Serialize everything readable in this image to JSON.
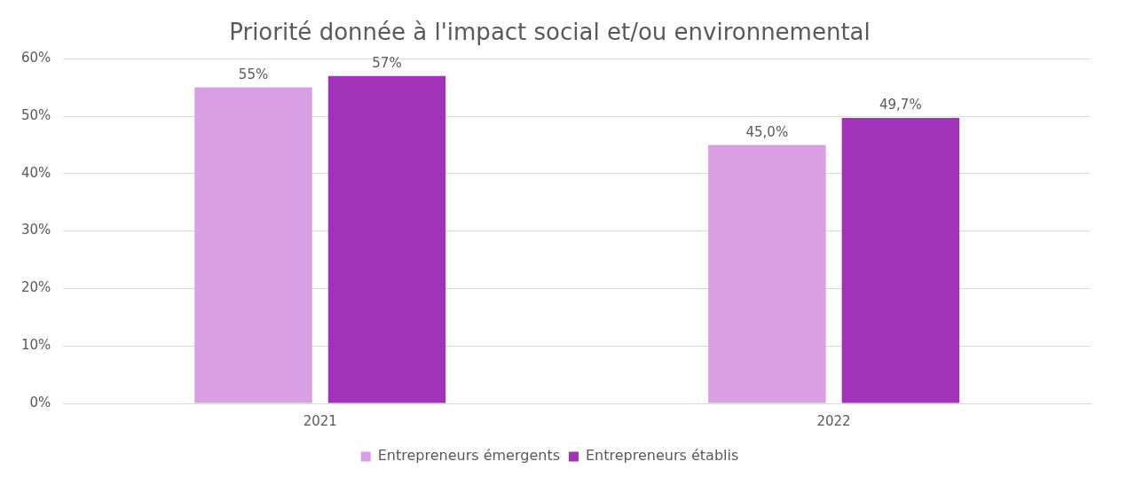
{
  "chart_data": {
    "type": "bar",
    "title": "Priorité donnée à l'impact social et/ou environnemental",
    "categories": [
      "2021",
      "2022"
    ],
    "series": [
      {
        "name": "Entrepreneurs émergents",
        "color": "#d89fe3",
        "values": [
          55,
          45.0
        ],
        "value_labels": [
          "55%",
          "45,0%"
        ]
      },
      {
        "name": "Entrepreneurs établis",
        "color": "#a033b8",
        "values": [
          57,
          49.7
        ],
        "value_labels": [
          "57%",
          "49,7%"
        ]
      }
    ],
    "ylim": [
      0,
      60
    ],
    "yticks": [
      {
        "value": 0,
        "label": "0%"
      },
      {
        "value": 10,
        "label": "10%"
      },
      {
        "value": 20,
        "label": "20%"
      },
      {
        "value": 30,
        "label": "30%"
      },
      {
        "value": 40,
        "label": "40%"
      },
      {
        "value": 50,
        "label": "50%"
      },
      {
        "value": 60,
        "label": "60%"
      }
    ],
    "grid": "y",
    "legend": "bottom"
  }
}
